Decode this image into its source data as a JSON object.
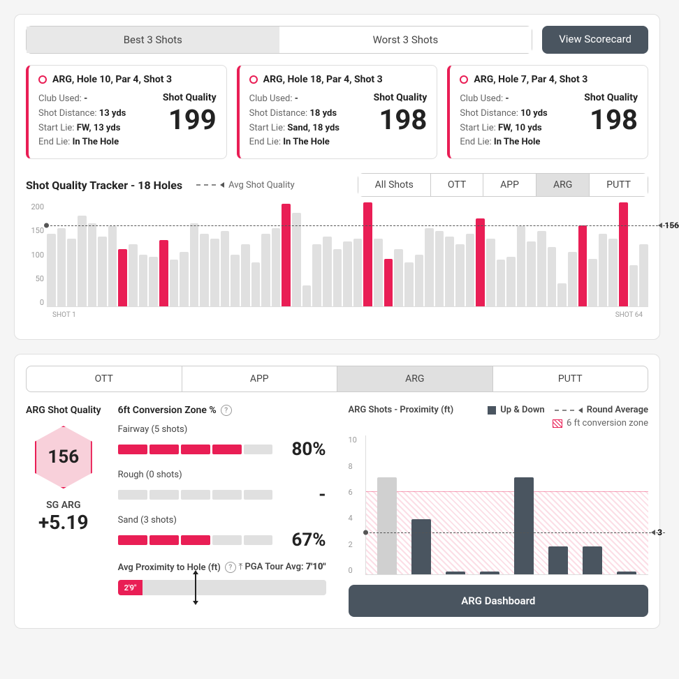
{
  "colors": {
    "accent": "#e91e55",
    "dark": "#4a5560",
    "grey_bar": "#e0e0e0",
    "light_accent": "#f8d0da"
  },
  "header": {
    "tab_best": "Best 3 Shots",
    "tab_worst": "Worst 3 Shots",
    "view_scorecard": "View Scorecard"
  },
  "shots": [
    {
      "title": "ARG, Hole 10, Par 4, Shot 3",
      "club": "-",
      "dist": "13 yds",
      "start": "FW, 13 yds",
      "end": "In The Hole",
      "score": "199"
    },
    {
      "title": "ARG, Hole 18, Par 4, Shot 3",
      "club": "-",
      "dist": "18 yds",
      "start": "Sand, 18 yds",
      "end": "In The Hole",
      "score": "198"
    },
    {
      "title": "ARG, Hole 7, Par 4, Shot 3",
      "club": "-",
      "dist": "10 yds",
      "start": "FW, 10 yds",
      "end": "In The Hole",
      "score": "198"
    }
  ],
  "shot_labels": {
    "club": "Club Used: ",
    "dist": "Shot Distance: ",
    "start": "Start Lie: ",
    "end": "End Lie: ",
    "quality": "Shot Quality"
  },
  "tracker": {
    "title": "Shot Quality Tracker - 18 Holes",
    "avg_label": "Avg Shot Quality",
    "avg_value": 156,
    "avg_value_text": "156",
    "ylim": [
      0,
      200
    ],
    "yticks": [
      "200",
      "150",
      "100",
      "50",
      "0"
    ],
    "xlabel_first": "SHOT 1",
    "xlabel_last": "SHOT 64",
    "filter_tabs": [
      "All Shots",
      "OTT",
      "APP",
      "ARG",
      "PUTT"
    ],
    "active_filter": "ARG",
    "bars": [
      {
        "v": 140,
        "h": false
      },
      {
        "v": 150,
        "h": false
      },
      {
        "v": 130,
        "h": false
      },
      {
        "v": 175,
        "h": false
      },
      {
        "v": 160,
        "h": false
      },
      {
        "v": 135,
        "h": false
      },
      {
        "v": 155,
        "h": false
      },
      {
        "v": 110,
        "h": true
      },
      {
        "v": 120,
        "h": false
      },
      {
        "v": 100,
        "h": false
      },
      {
        "v": 95,
        "h": false
      },
      {
        "v": 128,
        "h": true
      },
      {
        "v": 90,
        "h": false
      },
      {
        "v": 105,
        "h": false
      },
      {
        "v": 160,
        "h": false
      },
      {
        "v": 140,
        "h": false
      },
      {
        "v": 130,
        "h": false
      },
      {
        "v": 145,
        "h": false
      },
      {
        "v": 100,
        "h": false
      },
      {
        "v": 120,
        "h": false
      },
      {
        "v": 85,
        "h": false
      },
      {
        "v": 140,
        "h": false
      },
      {
        "v": 150,
        "h": false
      },
      {
        "v": 198,
        "h": true
      },
      {
        "v": 180,
        "h": false
      },
      {
        "v": 40,
        "h": false
      },
      {
        "v": 120,
        "h": false
      },
      {
        "v": 135,
        "h": false
      },
      {
        "v": 110,
        "h": false
      },
      {
        "v": 125,
        "h": false
      },
      {
        "v": 130,
        "h": false
      },
      {
        "v": 200,
        "h": true
      },
      {
        "v": 130,
        "h": false
      },
      {
        "v": 92,
        "h": true
      },
      {
        "v": 110,
        "h": false
      },
      {
        "v": 85,
        "h": false
      },
      {
        "v": 100,
        "h": false
      },
      {
        "v": 150,
        "h": false
      },
      {
        "v": 145,
        "h": false
      },
      {
        "v": 135,
        "h": false
      },
      {
        "v": 120,
        "h": false
      },
      {
        "v": 140,
        "h": false
      },
      {
        "v": 170,
        "h": true
      },
      {
        "v": 130,
        "h": false
      },
      {
        "v": 90,
        "h": false
      },
      {
        "v": 95,
        "h": false
      },
      {
        "v": 155,
        "h": false
      },
      {
        "v": 125,
        "h": false
      },
      {
        "v": 145,
        "h": false
      },
      {
        "v": 115,
        "h": false
      },
      {
        "v": 45,
        "h": false
      },
      {
        "v": 105,
        "h": false
      },
      {
        "v": 156,
        "h": true
      },
      {
        "v": 92,
        "h": false
      },
      {
        "v": 140,
        "h": false
      },
      {
        "v": 130,
        "h": false
      },
      {
        "v": 200,
        "h": true
      },
      {
        "v": 80,
        "h": false
      },
      {
        "v": 120,
        "h": false
      }
    ]
  },
  "panel2": {
    "tabs": [
      "OTT",
      "APP",
      "ARG",
      "PUTT"
    ],
    "active": "ARG",
    "quality_title": "ARG Shot Quality",
    "hex_value": "156",
    "sg_label": "SG ARG",
    "sg_value": "+5.19",
    "conv_title": "6ft Conversion Zone %",
    "conv": [
      {
        "label": "Fairway (5 shots)",
        "segments": 5,
        "filled": 4,
        "pct": "80%"
      },
      {
        "label": "Rough (0 shots)",
        "segments": 5,
        "filled": 0,
        "pct": "-"
      },
      {
        "label": "Sand (3 shots)",
        "segments": 5,
        "filled": 3,
        "pct": "67%"
      }
    ],
    "prox_label": "Avg Proximity to Hole (ft)",
    "pga_label": "PGA Tour Avg: ",
    "pga_value": "7'10\"",
    "prox_value": "2'9\"",
    "prox_fill_pct": 12,
    "prox_marker_pct": 37,
    "prox_chart": {
      "title": "ARG Shots - Proximity (ft)",
      "legend_updown": "Up & Down",
      "legend_roundavg": "Round Average",
      "legend_zone": "6 ft conversion zone",
      "ymax": 10,
      "yticks": [
        "10",
        "8",
        "6",
        "4",
        "2",
        "0"
      ],
      "zone_top": 6,
      "avg": 3,
      "avg_text": "3",
      "bars": [
        {
          "v": 7,
          "up": false
        },
        {
          "v": 4,
          "up": true
        },
        {
          "v": 0.2,
          "up": true
        },
        {
          "v": 0.2,
          "up": true
        },
        {
          "v": 7,
          "up": true
        },
        {
          "v": 2,
          "up": true
        },
        {
          "v": 2,
          "up": true
        },
        {
          "v": 0.2,
          "up": true
        }
      ]
    },
    "dash_btn": "ARG Dashboard"
  }
}
